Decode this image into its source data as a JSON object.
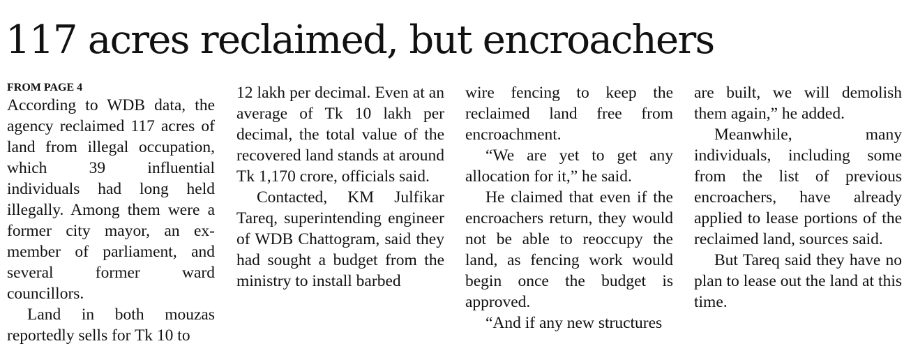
{
  "headline": "117 acres reclaimed, but encroachers",
  "kicker": "FROM PAGE 4",
  "columns": [
    {
      "paragraphs": [
        "According to WDB data, the agency reclaimed 117 acres of land from illegal occupation, which 39 influential individuals had long held illegally. Among them were a former city mayor, an ex-member of parliament, and several former ward councillors.",
        "Land in both mouzas reportedly sells for Tk 10 to"
      ]
    },
    {
      "paragraphs": [
        "12 lakh per decimal. Even at an average of Tk 10 lakh per decimal, the total value of the recovered land stands at around Tk 1,170 crore, officials said.",
        "Contacted, KM Julfikar Tareq, superintending engineer of WDB Chattogram, said they had sought a budget from the ministry to install barbed"
      ]
    },
    {
      "paragraphs": [
        "wire fencing to keep the reclaimed land free from encroachment.",
        "“We are yet to get any allocation for it,” he said.",
        "He claimed that even if the encroachers return, they would not be able to reoccupy the land, as fencing work would begin once the budget is approved.",
        "“And if any new structures"
      ]
    },
    {
      "paragraphs": [
        "are built, we will demolish them again,” he added.",
        "Meanwhile, many individuals, including some from the list of previous encroachers, have already applied to lease portions of the reclaimed land, sources said.",
        "But Tareq said they have no plan to lease out the land at this time."
      ]
    }
  ]
}
